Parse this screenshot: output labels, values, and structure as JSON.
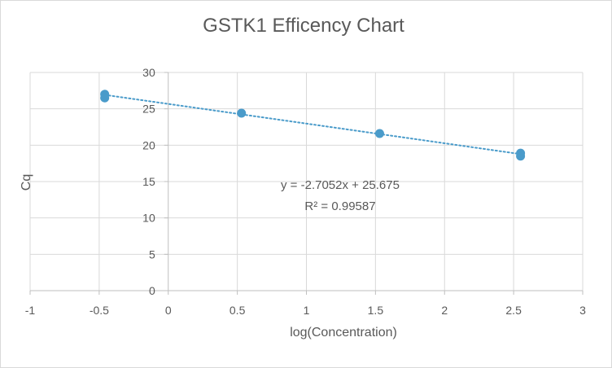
{
  "chart_data": {
    "type": "scatter",
    "title": "GSTK1 Efficency Chart",
    "xlabel": "log(Concentration)",
    "ylabel": "Cq",
    "xlim": [
      -1,
      3
    ],
    "ylim": [
      0,
      30
    ],
    "x_ticks": [
      "-1",
      "-0.5",
      "0",
      "0.5",
      "1",
      "1.5",
      "2",
      "2.5",
      "3"
    ],
    "y_ticks": [
      "0",
      "5",
      "10",
      "15",
      "20",
      "25",
      "30"
    ],
    "grid": true,
    "marker_color": "#4a9bca",
    "trendline_color": "#4a9bca",
    "points": [
      {
        "x": -0.46,
        "y": 27.0
      },
      {
        "x": -0.46,
        "y": 26.5
      },
      {
        "x": 0.53,
        "y": 24.4
      },
      {
        "x": 1.53,
        "y": 21.6
      },
      {
        "x": 2.55,
        "y": 18.9
      },
      {
        "x": 2.55,
        "y": 18.5
      }
    ],
    "trendline": {
      "slope": -2.7052,
      "intercept": 25.675,
      "x_range": [
        -0.46,
        2.55
      ],
      "equation": "y = -2.7052x + 25.675",
      "r_squared": "R² = 0.99587"
    }
  }
}
